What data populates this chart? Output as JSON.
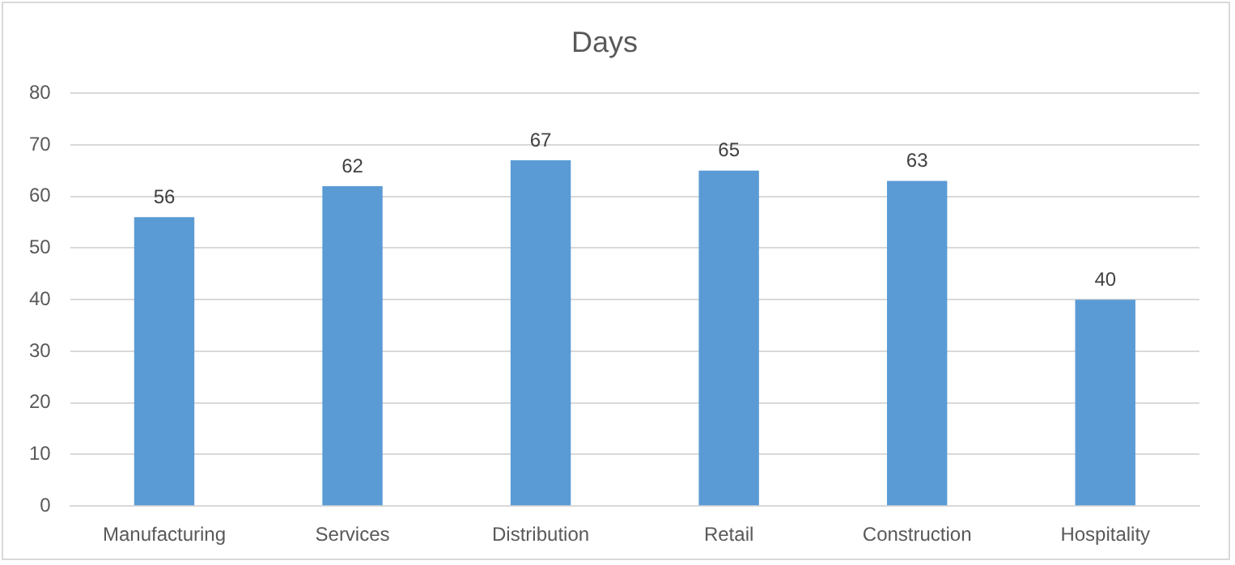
{
  "chart_data": {
    "type": "bar",
    "title": "Days",
    "categories": [
      "Manufacturing",
      "Services",
      "Distribution",
      "Retail",
      "Construction",
      "Hospitality"
    ],
    "values": [
      56,
      62,
      67,
      65,
      63,
      40
    ],
    "color": "#5b9bd5",
    "ylim": [
      0,
      80
    ],
    "yticks": [
      0,
      10,
      20,
      30,
      40,
      50,
      60,
      70,
      80
    ],
    "grid": "y",
    "data_labels": true,
    "legend": false
  }
}
